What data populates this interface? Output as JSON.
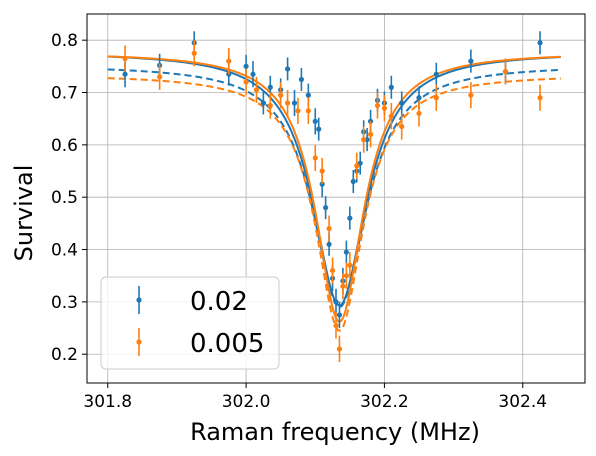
{
  "chart_data": {
    "type": "scatter",
    "title": "",
    "xlabel": "Raman frequency (MHz)",
    "ylabel": "Survival",
    "xlim": [
      301.77,
      302.49
    ],
    "ylim": [
      0.145,
      0.85
    ],
    "xticks": [
      301.8,
      302.0,
      302.2,
      302.4
    ],
    "xtick_labels": [
      "301.8",
      "302.0",
      "302.2",
      "302.4"
    ],
    "yticks": [
      0.2,
      0.3,
      0.4,
      0.5,
      0.6,
      0.7,
      0.8
    ],
    "ytick_labels": [
      "0.2",
      "0.3",
      "0.4",
      "0.5",
      "0.6",
      "0.7",
      "0.8"
    ],
    "grid": true,
    "legend_position": "lower-left",
    "series": [
      {
        "name": "0.02",
        "color": "#1f77b4",
        "x": [
          301.825,
          301.875,
          301.925,
          301.975,
          302.0,
          302.01,
          302.025,
          302.035,
          302.05,
          302.06,
          302.07,
          302.08,
          302.09,
          302.1,
          302.105,
          302.11,
          302.115,
          302.12,
          302.125,
          302.13,
          302.135,
          302.14,
          302.145,
          302.15,
          302.155,
          302.16,
          302.165,
          302.17,
          302.175,
          302.18,
          302.19,
          302.2,
          302.21,
          302.225,
          302.25,
          302.275,
          302.325,
          302.375,
          302.425
        ],
        "y": [
          0.735,
          0.752,
          0.795,
          0.735,
          0.75,
          0.735,
          0.68,
          0.71,
          0.705,
          0.745,
          0.68,
          0.725,
          0.695,
          0.645,
          0.63,
          0.525,
          0.48,
          0.41,
          0.345,
          0.3,
          0.275,
          0.34,
          0.395,
          0.46,
          0.53,
          0.55,
          0.565,
          0.625,
          0.61,
          0.645,
          0.685,
          0.68,
          0.71,
          0.68,
          0.69,
          0.735,
          0.76,
          0.74,
          0.795
        ],
        "yerr": [
          0.025,
          0.022,
          0.022,
          0.022,
          0.022,
          0.025,
          0.022,
          0.022,
          0.022,
          0.022,
          0.025,
          0.022,
          0.022,
          0.025,
          0.022,
          0.025,
          0.022,
          0.022,
          0.025,
          0.025,
          0.025,
          0.025,
          0.022,
          0.022,
          0.022,
          0.022,
          0.022,
          0.022,
          0.022,
          0.022,
          0.022,
          0.022,
          0.022,
          0.022,
          0.022,
          0.022,
          0.022,
          0.022,
          0.022
        ],
        "fit_solid": {
          "center": 302.135,
          "baseline": 0.778,
          "depth": 0.485,
          "hwhm": 0.047
        },
        "fit_dashed": {
          "center": 302.135,
          "baseline": 0.753,
          "depth": 0.463,
          "hwhm": 0.047
        }
      },
      {
        "name": "0.005",
        "color": "#ff7f0e",
        "x": [
          301.825,
          301.875,
          301.925,
          301.975,
          302.0,
          302.015,
          302.035,
          302.05,
          302.06,
          302.075,
          302.09,
          302.1,
          302.11,
          302.12,
          302.125,
          302.13,
          302.135,
          302.14,
          302.145,
          302.15,
          302.16,
          302.17,
          302.18,
          302.19,
          302.2,
          302.21,
          302.225,
          302.25,
          302.275,
          302.325,
          302.375,
          302.425
        ],
        "y": [
          0.765,
          0.73,
          0.775,
          0.76,
          0.72,
          0.705,
          0.675,
          0.695,
          0.68,
          0.665,
          0.665,
          0.575,
          0.55,
          0.44,
          0.36,
          0.255,
          0.21,
          0.33,
          0.35,
          0.37,
          0.56,
          0.61,
          0.62,
          0.675,
          0.67,
          0.655,
          0.635,
          0.66,
          0.69,
          0.695,
          0.74,
          0.69
        ],
        "yerr": [
          0.025,
          0.025,
          0.025,
          0.025,
          0.025,
          0.025,
          0.025,
          0.025,
          0.025,
          0.025,
          0.025,
          0.025,
          0.025,
          0.025,
          0.025,
          0.025,
          0.025,
          0.025,
          0.025,
          0.025,
          0.025,
          0.025,
          0.025,
          0.025,
          0.025,
          0.025,
          0.025,
          0.025,
          0.025,
          0.025,
          0.025,
          0.025
        ],
        "fit_solid": {
          "center": 302.135,
          "baseline": 0.777,
          "depth": 0.515,
          "hwhm": 0.042
        },
        "fit_dashed": {
          "center": 302.135,
          "baseline": 0.735,
          "depth": 0.49,
          "hwhm": 0.042
        }
      }
    ]
  }
}
